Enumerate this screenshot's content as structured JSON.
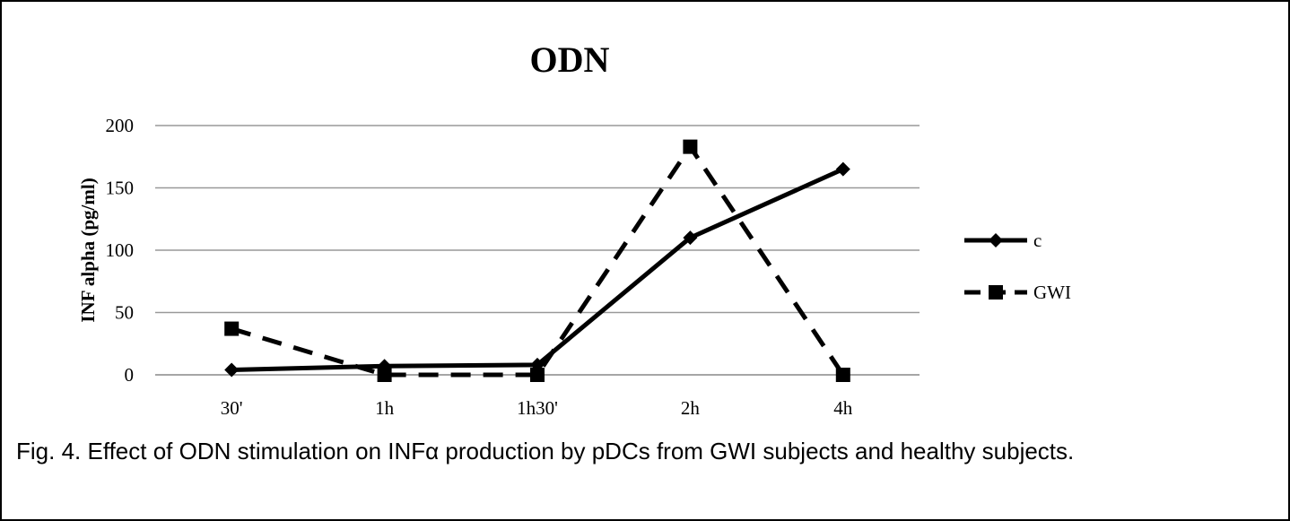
{
  "chart_data": {
    "type": "line",
    "title": "ODN",
    "y_label": "INF alpha (pg/ml)",
    "categories": [
      "30'",
      "1h",
      "1h30'",
      "2h",
      "4h"
    ],
    "series": [
      {
        "name": "c",
        "color": "#000000",
        "dash": "solid",
        "marker": "diamond",
        "values": [
          4,
          7,
          8,
          110,
          165
        ]
      },
      {
        "name": "GWI",
        "color": "#000000",
        "dash": "dashed",
        "marker": "square",
        "values": [
          37,
          0,
          0,
          183,
          0
        ]
      }
    ],
    "ylim": [
      0,
      200
    ],
    "yticks": [
      0,
      50,
      100,
      150,
      200
    ],
    "grid": true,
    "legend": "right",
    "caption": "Fig. 4. Effect of ODN stimulation on INFα production by pDCs from GWI subjects and healthy subjects."
  }
}
